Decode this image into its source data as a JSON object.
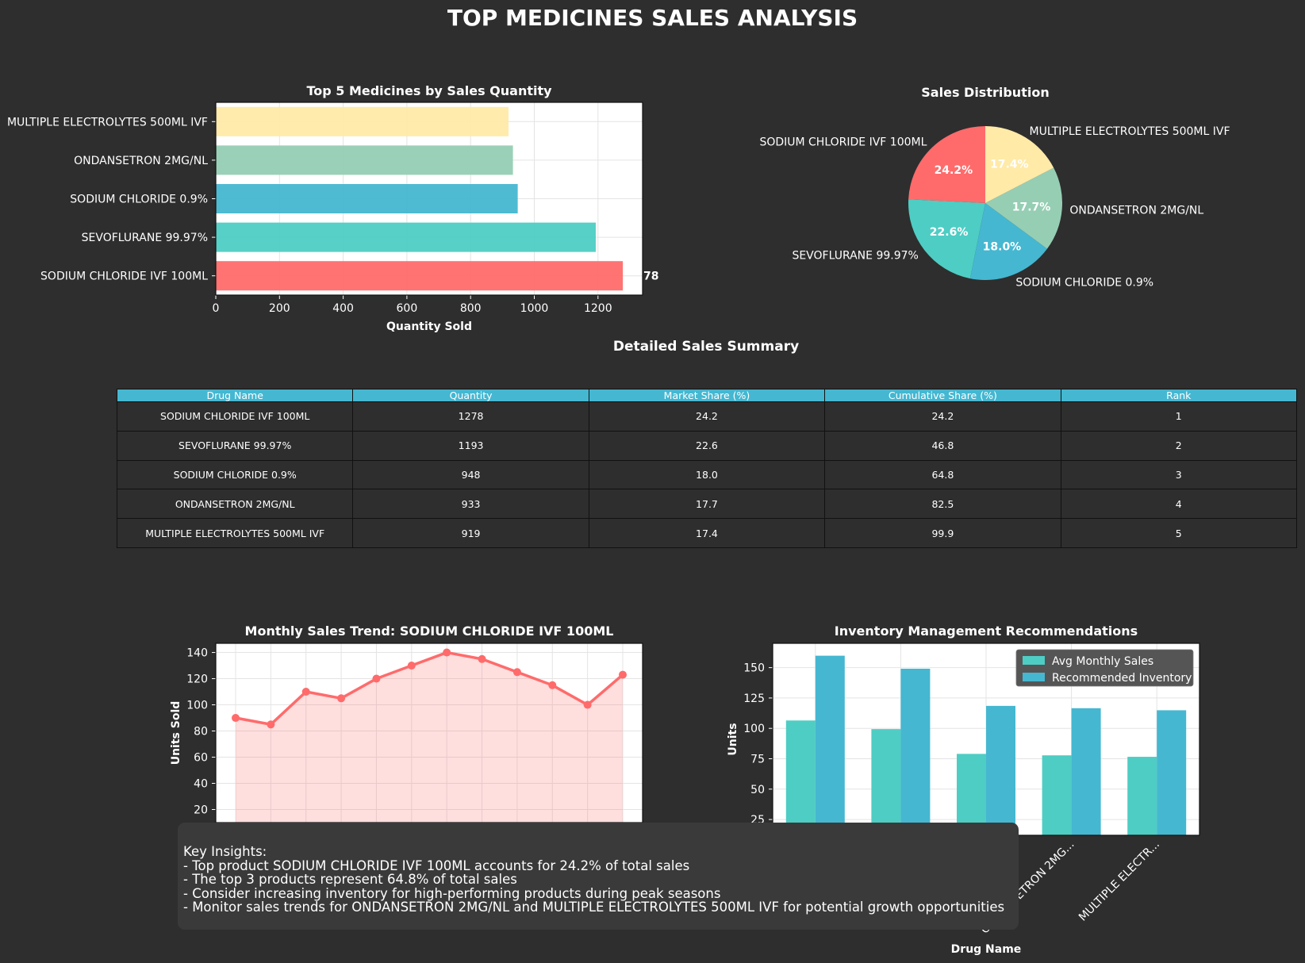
{
  "title": "TOP MEDICINES SALES ANALYSIS",
  "colors": {
    "background": "#2e2e2e",
    "red": "#ff6b6b",
    "teal": "#4ecdc4",
    "blue": "#45b7d1",
    "green": "#96ceb4",
    "yellow": "#ffeaa7"
  },
  "bar_chart": {
    "title": "Top 5 Medicines by Sales Quantity",
    "xlabel": "Quantity Sold",
    "xticks": [
      "0",
      "200",
      "400",
      "600",
      "800",
      "1000",
      "1200"
    ],
    "value_label_visible": "78"
  },
  "pie_chart": {
    "title": "Sales Distribution"
  },
  "table": {
    "title": "Detailed Sales Summary",
    "headers": [
      "Drug Name",
      "Quantity",
      "Market Share (%)",
      "Cumulative Share (%)",
      "Rank"
    ],
    "rows": [
      [
        "SODIUM CHLORIDE IVF 100ML",
        "1278",
        "24.2",
        "24.2",
        "1"
      ],
      [
        "SEVOFLURANE 99.97%",
        "1193",
        "22.6",
        "46.8",
        "2"
      ],
      [
        "SODIUM CHLORIDE 0.9%",
        "948",
        "18.0",
        "64.8",
        "3"
      ],
      [
        "ONDANSETRON 2MG/NL",
        "933",
        "17.7",
        "82.5",
        "4"
      ],
      [
        "MULTIPLE ELECTROLYTES 500ML IVF",
        "919",
        "17.4",
        "99.9",
        "5"
      ]
    ]
  },
  "trend_chart": {
    "title": "Monthly Sales Trend: SODIUM CHLORIDE IVF 100ML",
    "ylabel": "Units Sold",
    "yticks": [
      "20",
      "40",
      "60",
      "80",
      "100",
      "120",
      "140"
    ]
  },
  "inventory_chart": {
    "title": "Inventory Management Recommendations",
    "ylabel": "Units",
    "xlabel": "Drug Name",
    "yticks": [
      "25",
      "50",
      "75",
      "100",
      "125",
      "150"
    ],
    "visible_xticks": [
      "ONDANSETRON 2MG...",
      "MULTIPLE ELECTR..."
    ]
  },
  "insights": {
    "heading": "Key Insights:",
    "lines": [
      "- Top product SODIUM CHLORIDE IVF 100ML accounts for 24.2% of total sales",
      "- The top 3 products represent 64.8% of total sales",
      "- Consider increasing inventory for high-performing products during peak seasons",
      "- Monitor sales trends for ONDANSETRON 2MG/NL and MULTIPLE ELECTROLYTES 500ML IVF for potential growth opportunities"
    ]
  },
  "chart_data": [
    {
      "type": "bar",
      "orientation": "horizontal",
      "title": "Top 5 Medicines by Sales Quantity",
      "xlabel": "Quantity Sold",
      "categories": [
        "SODIUM CHLORIDE IVF 100ML",
        "SEVOFLURANE 99.97%",
        "SODIUM CHLORIDE 0.9%",
        "ONDANSETRON 2MG/NL",
        "MULTIPLE ELECTROLYTES 500ML IVF"
      ],
      "values": [
        1278,
        1193,
        948,
        933,
        919
      ],
      "colors": [
        "#ff6b6b",
        "#4ecdc4",
        "#45b7d1",
        "#96ceb4",
        "#ffeaa7"
      ],
      "xlim": [
        0,
        1340
      ],
      "grid": true
    },
    {
      "type": "pie",
      "title": "Sales Distribution",
      "labels": [
        "SODIUM CHLORIDE IVF 100ML",
        "SEVOFLURANE 99.97%",
        "SODIUM CHLORIDE 0.9%",
        "ONDANSETRON 2MG/NL",
        "MULTIPLE ELECTROLYTES 500ML IVF"
      ],
      "values": [
        24.2,
        22.6,
        18.0,
        17.7,
        17.4
      ],
      "pct_labels": [
        "24.2%",
        "22.6%",
        "18.0%",
        "17.7%",
        "17.4%"
      ],
      "colors": [
        "#ff6b6b",
        "#4ecdc4",
        "#45b7d1",
        "#96ceb4",
        "#ffeaa7"
      ]
    },
    {
      "type": "line",
      "title": "Monthly Sales Trend: SODIUM CHLORIDE IVF 100ML",
      "ylabel": "Units Sold",
      "values": [
        90,
        85,
        110,
        105,
        120,
        130,
        140,
        135,
        125,
        115,
        100,
        123
      ],
      "ylim": [
        10,
        147
      ],
      "fill": true,
      "color": "#ff6b6b",
      "grid": true
    },
    {
      "type": "bar",
      "title": "Inventory Management Recommendations",
      "ylabel": "Units",
      "xlabel": "Drug Name",
      "categories": [
        "SODIUM CHLORIDE IVF 100ML",
        "SEVOFLURANE 99.97%",
        "SODIUM CHLORIDE 0.9%",
        "ONDANSETRON 2MG/NL",
        "MULTIPLE ELECTROLYTES 500ML IVF"
      ],
      "series": [
        {
          "name": "Avg Monthly Sales",
          "values": [
            106.5,
            99.4,
            79.0,
            77.8,
            76.6
          ],
          "color": "#4ecdc4"
        },
        {
          "name": "Recommended Inventory",
          "values": [
            159.8,
            149.1,
            118.5,
            116.6,
            114.9
          ],
          "color": "#45b7d1"
        }
      ],
      "ylim": [
        12,
        170
      ],
      "legend": "top-right",
      "grid": true
    }
  ]
}
